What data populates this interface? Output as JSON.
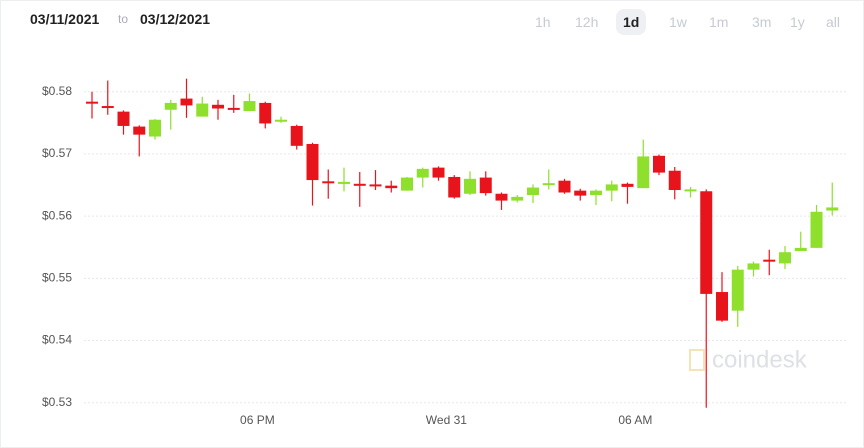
{
  "header": {
    "from": "03/11/2021",
    "separator": "to",
    "to": "03/12/2021",
    "ranges": [
      "1h",
      "12h",
      "1d",
      "1w",
      "1m",
      "3m",
      "1y",
      "all"
    ],
    "selected_range_index": 2
  },
  "watermark": "coindesk",
  "chart_data": {
    "type": "candlestick",
    "categories": [
      null,
      null,
      null,
      null,
      null,
      null,
      null,
      null,
      null,
      null,
      null,
      "06 PM",
      null,
      null,
      null,
      null,
      null,
      null,
      null,
      null,
      null,
      null,
      null,
      "Wed 31",
      null,
      null,
      null,
      null,
      null,
      null,
      null,
      null,
      null,
      null,
      null,
      "06 AM",
      null,
      null,
      null,
      null,
      null,
      null,
      null,
      null,
      null,
      null,
      null,
      null
    ],
    "open": [
      0.5784,
      0.5777,
      0.5768,
      0.5744,
      0.5728,
      0.5771,
      0.5789,
      0.576,
      0.5779,
      0.5774,
      0.5769,
      0.5782,
      0.5752,
      0.5745,
      0.5716,
      0.5656,
      0.5653,
      0.5652,
      0.5651,
      0.5649,
      0.5641,
      0.5662,
      0.5678,
      0.5663,
      0.5636,
      0.5662,
      0.5636,
      0.5625,
      0.5634,
      0.565,
      0.5657,
      0.5641,
      0.5634,
      0.5641,
      0.5652,
      0.5645,
      0.5697,
      0.5673,
      0.5642,
      0.564,
      0.5478,
      0.5448,
      0.5514,
      0.553,
      0.5524,
      0.5544,
      0.5549,
      0.5609
    ],
    "high": [
      0.58,
      0.5818,
      0.577,
      0.5746,
      0.5756,
      0.5787,
      0.5821,
      0.5792,
      0.5787,
      0.5795,
      0.5797,
      0.5784,
      0.576,
      0.5747,
      0.5718,
      0.5675,
      0.5678,
      0.5671,
      0.5674,
      0.5657,
      0.5663,
      0.5678,
      0.568,
      0.5666,
      0.5672,
      0.5672,
      0.5638,
      0.5634,
      0.5651,
      0.5675,
      0.566,
      0.5644,
      0.5643,
      0.5657,
      0.5654,
      0.5723,
      0.5699,
      0.5679,
      0.5647,
      0.5643,
      0.551,
      0.552,
      0.5527,
      0.5546,
      0.5552,
      0.5575,
      0.5618,
      0.5654
    ],
    "low": [
      0.5757,
      0.5763,
      0.5731,
      0.5696,
      0.5723,
      0.5739,
      0.5758,
      0.576,
      0.5755,
      0.5766,
      0.5769,
      0.5741,
      0.575,
      0.5707,
      0.5617,
      0.5628,
      0.564,
      0.5615,
      0.5642,
      0.5638,
      0.5641,
      0.5646,
      0.5657,
      0.5628,
      0.5634,
      0.5633,
      0.561,
      0.5622,
      0.5621,
      0.5643,
      0.5636,
      0.5625,
      0.5618,
      0.5624,
      0.562,
      0.5645,
      0.5666,
      0.5627,
      0.563,
      0.5292,
      0.543,
      0.5422,
      0.5503,
      0.5505,
      0.5515,
      0.5544,
      0.5549,
      0.5601
    ],
    "close": [
      0.5782,
      0.5776,
      0.5745,
      0.5731,
      0.5755,
      0.5782,
      0.5778,
      0.5781,
      0.5773,
      0.5773,
      0.5785,
      0.5749,
      0.5755,
      0.5713,
      0.5658,
      0.5653,
      0.5655,
      0.5649,
      0.5649,
      0.5645,
      0.5662,
      0.5676,
      0.5662,
      0.563,
      0.566,
      0.5637,
      0.5625,
      0.5631,
      0.5646,
      0.5653,
      0.5638,
      0.5633,
      0.5641,
      0.5651,
      0.5647,
      0.5696,
      0.567,
      0.5642,
      0.5643,
      0.5475,
      0.5432,
      0.5514,
      0.5524,
      0.5529,
      0.5542,
      0.5549,
      0.5607,
      0.5614
    ],
    "up_color": "#8ee02c",
    "down_color": "#e8141c",
    "ylim": [
      0.5253,
      0.5851
    ],
    "yticks": [
      {
        "value": 0.53,
        "label": "$0.53"
      },
      {
        "value": 0.54,
        "label": "$0.54"
      },
      {
        "value": 0.55,
        "label": "$0.55"
      },
      {
        "value": 0.56,
        "label": "$0.56"
      },
      {
        "value": 0.57,
        "label": "$0.57"
      },
      {
        "value": 0.58,
        "label": "$0.58"
      }
    ],
    "grid": true
  }
}
